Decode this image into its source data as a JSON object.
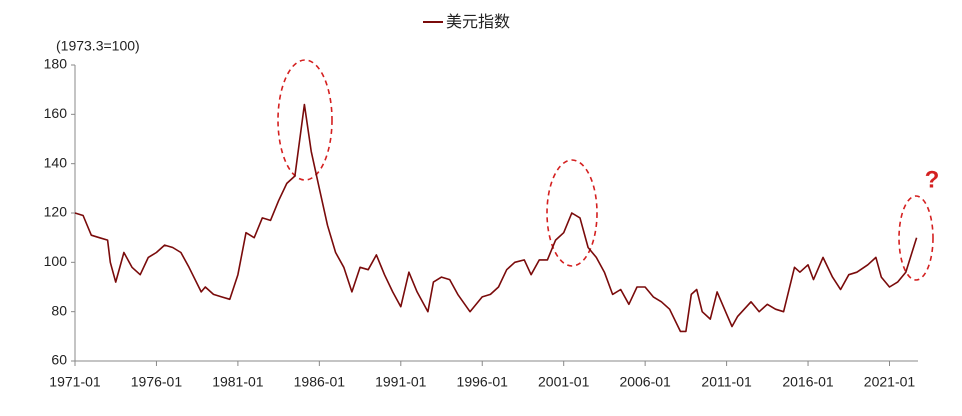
{
  "chart_data": {
    "type": "line",
    "series": [
      {
        "name": "美元指数",
        "color": "#7a0b0b",
        "values": [
          120,
          119,
          111,
          110,
          109,
          100,
          92,
          104,
          98,
          95,
          102,
          104,
          107,
          106,
          104,
          98,
          88,
          90,
          87,
          86,
          85,
          95,
          112,
          110,
          118,
          117,
          125,
          132,
          135,
          164,
          145,
          130,
          115,
          104,
          98,
          88,
          98,
          97,
          103,
          95,
          88,
          82,
          96,
          88,
          80,
          92,
          94,
          93,
          87,
          80,
          82,
          86,
          87,
          90,
          97,
          100,
          101,
          95,
          101,
          101,
          109,
          112,
          120,
          118,
          106,
          102,
          96,
          87,
          89,
          83,
          90,
          90,
          86,
          84,
          81,
          72,
          72,
          87,
          89,
          80,
          77,
          88,
          79,
          74,
          78,
          84,
          80,
          83,
          81,
          80,
          98,
          96,
          99,
          93,
          102,
          94,
          89,
          95,
          96,
          99,
          102,
          94,
          90,
          92,
          96,
          110
        ]
      }
    ],
    "x": [
      "1971-01",
      "1971-07",
      "1972-01",
      "1972-07",
      "1973-01",
      "1973-03",
      "1973-07",
      "1974-01",
      "1974-07",
      "1975-01",
      "1975-07",
      "1976-01",
      "1976-07",
      "1977-01",
      "1977-07",
      "1978-01",
      "1978-10",
      "1979-01",
      "1979-07",
      "1980-01",
      "1980-07",
      "1981-01",
      "1981-07",
      "1982-01",
      "1982-07",
      "1983-01",
      "1983-07",
      "1984-01",
      "1984-07",
      "1985-02",
      "1985-07",
      "1986-01",
      "1986-07",
      "1987-01",
      "1987-07",
      "1988-01",
      "1988-07",
      "1989-01",
      "1989-07",
      "1990-01",
      "1990-07",
      "1991-01",
      "1991-07",
      "1992-01",
      "1992-09",
      "1993-01",
      "1993-07",
      "1994-01",
      "1994-07",
      "1995-04",
      "1995-07",
      "1996-01",
      "1996-07",
      "1997-01",
      "1997-07",
      "1998-01",
      "1998-08",
      "1999-01",
      "1999-07",
      "2000-01",
      "2000-07",
      "2001-01",
      "2001-07",
      "2002-01",
      "2002-07",
      "2003-01",
      "2003-07",
      "2004-01",
      "2004-07",
      "2005-01",
      "2005-07",
      "2006-01",
      "2006-07",
      "2007-01",
      "2007-07",
      "2008-03",
      "2008-07",
      "2008-11",
      "2009-03",
      "2009-07",
      "2010-01",
      "2010-06",
      "2011-01",
      "2011-05",
      "2011-09",
      "2012-07",
      "2013-01",
      "2013-07",
      "2014-01",
      "2014-07",
      "2015-03",
      "2015-07",
      "2016-01",
      "2016-05",
      "2016-12",
      "2017-07",
      "2018-01",
      "2018-07",
      "2019-01",
      "2019-09",
      "2020-03",
      "2020-07",
      "2021-01",
      "2021-07",
      "2022-01",
      "2022-09"
    ],
    "xlim": [
      "1971-01",
      "2022-10"
    ],
    "xticks": [
      "1971-01",
      "1976-01",
      "1981-01",
      "1986-01",
      "1991-01",
      "1996-01",
      "2001-01",
      "2006-01",
      "2011-01",
      "2016-01",
      "2021-01"
    ],
    "ylim": [
      60,
      180
    ],
    "yticks": [
      60,
      80,
      100,
      120,
      140,
      160,
      180
    ],
    "y_label": "(1973.3=100)",
    "annotation": "?"
  }
}
